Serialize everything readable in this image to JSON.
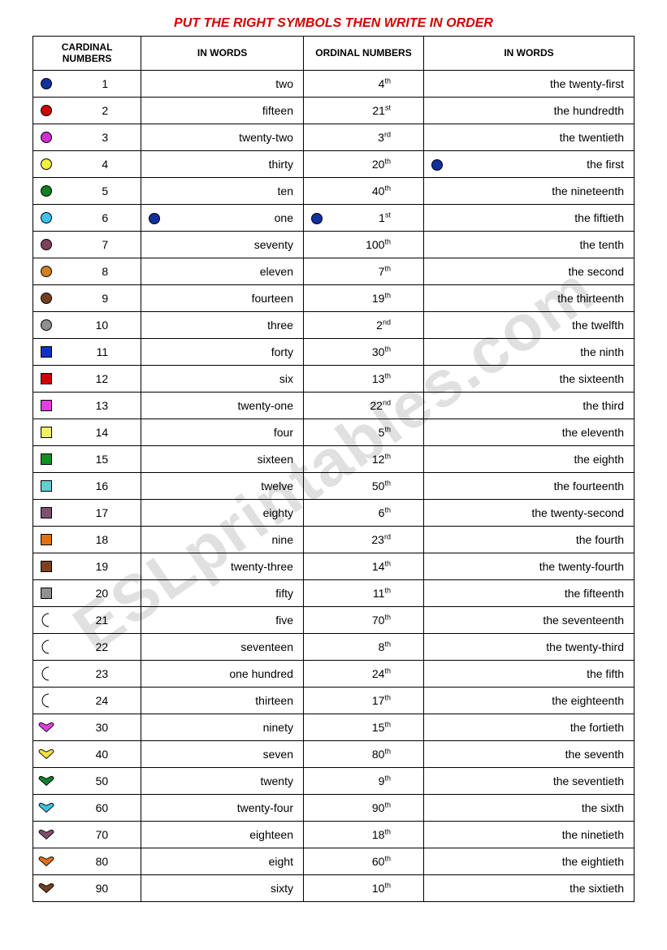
{
  "title": "PUT THE RIGHT SYMBOLS THEN WRITE IN ORDER",
  "watermark": "ESLprintables.com",
  "headers": {
    "cardinal": "CARDINAL NUMBERS",
    "words1": "IN WORDS",
    "ordinal": "ORDINAL NUMBERS",
    "words2": "IN WORDS"
  },
  "markers": {
    "words1_row": 5,
    "ordinal_row": 5,
    "words2_row": 3,
    "color": "#1030a0"
  },
  "rows": [
    {
      "shape": "circle",
      "color": "#1030a0",
      "cardinal": "1",
      "word1": "two",
      "ord": "4",
      "sup": "th",
      "word2": "the twenty-first"
    },
    {
      "shape": "circle",
      "color": "#d00000",
      "cardinal": "2",
      "word1": "fifteen",
      "ord": "21",
      "sup": "st",
      "word2": "the hundredth"
    },
    {
      "shape": "circle",
      "color": "#d030d0",
      "cardinal": "3",
      "word1": "twenty-two",
      "ord": "3",
      "sup": "rd",
      "word2": "the twentieth"
    },
    {
      "shape": "circle",
      "color": "#f0f040",
      "cardinal": "4",
      "word1": "thirty",
      "ord": "20",
      "sup": "th",
      "word2": "the first"
    },
    {
      "shape": "circle",
      "color": "#108020",
      "cardinal": "5",
      "word1": "ten",
      "ord": "40",
      "sup": "th",
      "word2": "the nineteenth"
    },
    {
      "shape": "circle",
      "color": "#40c0f0",
      "cardinal": "6",
      "word1": "one",
      "ord": "1",
      "sup": "st",
      "word2": "the fiftieth"
    },
    {
      "shape": "circle",
      "color": "#804060",
      "cardinal": "7",
      "word1": "seventy",
      "ord": "100",
      "sup": "th",
      "word2": "the tenth"
    },
    {
      "shape": "circle",
      "color": "#d08020",
      "cardinal": "8",
      "word1": "eleven",
      "ord": "7",
      "sup": "th",
      "word2": "the second"
    },
    {
      "shape": "circle",
      "color": "#704020",
      "cardinal": "9",
      "word1": "fourteen",
      "ord": "19",
      "sup": "th",
      "word2": "the thirteenth"
    },
    {
      "shape": "circle",
      "color": "#909090",
      "cardinal": "10",
      "word1": "three",
      "ord": "2",
      "sup": "nd",
      "word2": "the twelfth"
    },
    {
      "shape": "square",
      "color": "#1030d0",
      "cardinal": "11",
      "word1": "forty",
      "ord": "30",
      "sup": "th",
      "word2": "the ninth"
    },
    {
      "shape": "square",
      "color": "#d00000",
      "cardinal": "12",
      "word1": "six",
      "ord": "13",
      "sup": "th",
      "word2": "the sixteenth"
    },
    {
      "shape": "square",
      "color": "#e040e0",
      "cardinal": "13",
      "word1": "twenty-one",
      "ord": "22",
      "sup": "nd",
      "word2": "the third"
    },
    {
      "shape": "square",
      "color": "#f0f060",
      "cardinal": "14",
      "word1": "four",
      "ord": "5",
      "sup": "th",
      "word2": "the eleventh"
    },
    {
      "shape": "square",
      "color": "#109020",
      "cardinal": "15",
      "word1": "sixteen",
      "ord": "12",
      "sup": "th",
      "word2": "the eighth"
    },
    {
      "shape": "square",
      "color": "#60d0d0",
      "cardinal": "16",
      "word1": "twelve",
      "ord": "50",
      "sup": "th",
      "word2": "the fourteenth"
    },
    {
      "shape": "square",
      "color": "#805070",
      "cardinal": "17",
      "word1": "eighty",
      "ord": "6",
      "sup": "th",
      "word2": "the twenty-second"
    },
    {
      "shape": "square",
      "color": "#e07010",
      "cardinal": "18",
      "word1": "nine",
      "ord": "23",
      "sup": "rd",
      "word2": "the fourth"
    },
    {
      "shape": "square",
      "color": "#804020",
      "cardinal": "19",
      "word1": "twenty-three",
      "ord": "14",
      "sup": "th",
      "word2": "the twenty-fourth"
    },
    {
      "shape": "square",
      "color": "#909090",
      "cardinal": "20",
      "word1": "fifty",
      "ord": "11",
      "sup": "th",
      "word2": "the fifteenth"
    },
    {
      "shape": "moon",
      "color": "#2040c0",
      "cardinal": "21",
      "word1": "five",
      "ord": "70",
      "sup": "th",
      "word2": "the seventeenth"
    },
    {
      "shape": "moon",
      "color": "#c02010",
      "cardinal": "22",
      "word1": "seventeen",
      "ord": "8",
      "sup": "th",
      "word2": "the twenty-third"
    },
    {
      "shape": "moon",
      "color": "#e040e0",
      "cardinal": "23",
      "word1": "one hundred",
      "ord": "24",
      "sup": "th",
      "word2": "the fifth"
    },
    {
      "shape": "moon",
      "color": "#f0e040",
      "cardinal": "24",
      "word1": "thirteen",
      "ord": "17",
      "sup": "th",
      "word2": "the eighteenth"
    },
    {
      "shape": "heart",
      "color": "#e040e0",
      "cardinal": "30",
      "word1": "ninety",
      "ord": "15",
      "sup": "th",
      "word2": "the fortieth"
    },
    {
      "shape": "heart",
      "color": "#f0e040",
      "cardinal": "40",
      "word1": "seven",
      "ord": "80",
      "sup": "th",
      "word2": "the seventh"
    },
    {
      "shape": "heart",
      "color": "#108030",
      "cardinal": "50",
      "word1": "twenty",
      "ord": "9",
      "sup": "th",
      "word2": "the seventieth"
    },
    {
      "shape": "heart",
      "color": "#40c0e0",
      "cardinal": "60",
      "word1": "twenty-four",
      "ord": "90",
      "sup": "th",
      "word2": "the sixth"
    },
    {
      "shape": "heart",
      "color": "#805070",
      "cardinal": "70",
      "word1": "eighteen",
      "ord": "18",
      "sup": "th",
      "word2": "the ninetieth"
    },
    {
      "shape": "heart",
      "color": "#e07020",
      "cardinal": "80",
      "word1": "eight",
      "ord": "60",
      "sup": "th",
      "word2": "the eightieth"
    },
    {
      "shape": "heart",
      "color": "#704020",
      "cardinal": "90",
      "word1": "sixty",
      "ord": "10",
      "sup": "th",
      "word2": "the sixtieth"
    }
  ]
}
